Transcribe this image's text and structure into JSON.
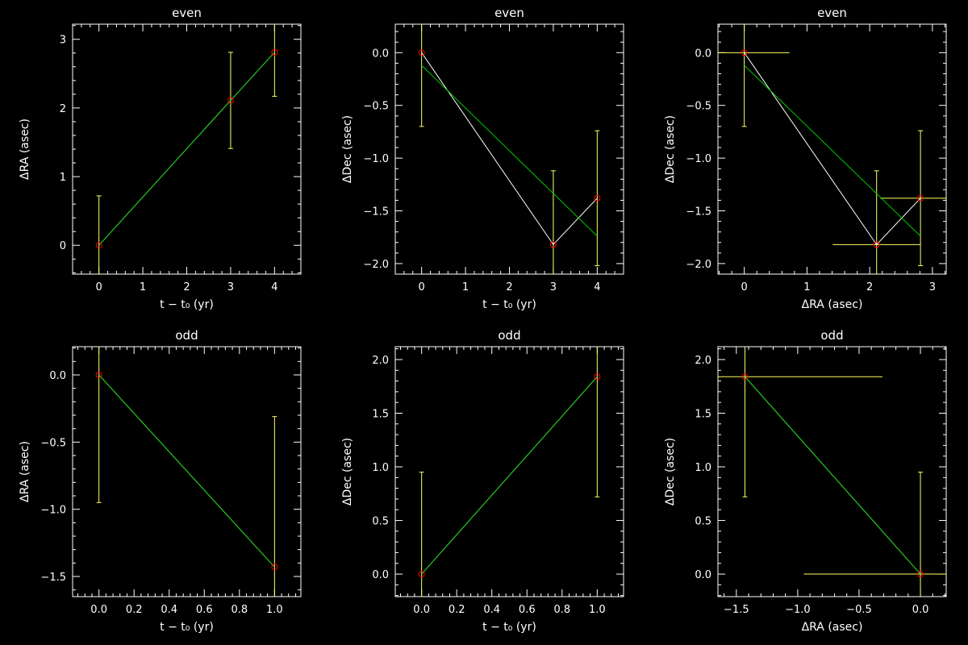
{
  "figure": {
    "colors": {
      "background": "#000000",
      "axes": "#ffffff",
      "fit_line": "#00c800",
      "connector_line": "#ffffff",
      "error_bars": "#ffff64",
      "markers": "#ff0000"
    }
  },
  "chart_data": [
    {
      "type": "scatter",
      "title": "even",
      "xlabel": "t − t₀ (yr)",
      "ylabel": "ΔRA (asec)",
      "xlim": [
        -0.6,
        4.6
      ],
      "ylim": [
        -0.42,
        3.22
      ],
      "xticks": [
        0,
        1,
        2,
        3,
        4
      ],
      "xtick_labels": [
        "0",
        "1",
        "2",
        "3",
        "4"
      ],
      "yticks": [
        0,
        1,
        2,
        3
      ],
      "ytick_labels": [
        "0",
        "1",
        "2",
        "3"
      ],
      "points": [
        {
          "x": 0,
          "y": 0,
          "yerr": 0.72
        },
        {
          "x": 3,
          "y": 2.11,
          "yerr": 0.7
        },
        {
          "x": 4,
          "y": 2.81,
          "yerr": 0.64
        }
      ],
      "connector": true,
      "fit": {
        "x": [
          0,
          4
        ],
        "y": [
          0.0,
          2.81
        ]
      },
      "grid": false
    },
    {
      "type": "scatter",
      "title": "even",
      "xlabel": "t − t₀ (yr)",
      "ylabel": "ΔDec (asec)",
      "xlim": [
        -0.6,
        4.6
      ],
      "ylim": [
        -2.1,
        0.27
      ],
      "xticks": [
        0,
        1,
        2,
        3,
        4
      ],
      "xtick_labels": [
        "0",
        "1",
        "2",
        "3",
        "4"
      ],
      "yticks": [
        0,
        -0.5,
        -1,
        -1.5,
        -2
      ],
      "ytick_labels": [
        "0.0",
        "−0.5",
        "−1.0",
        "−1.5",
        "−2.0"
      ],
      "points": [
        {
          "x": 0,
          "y": 0,
          "yerr": 0.7
        },
        {
          "x": 3,
          "y": -1.82,
          "yerr": 0.7
        },
        {
          "x": 4,
          "y": -1.38,
          "yerr": 0.64
        }
      ],
      "connector": true,
      "fit": {
        "x": [
          0,
          4
        ],
        "y": [
          -0.12,
          -1.74
        ]
      },
      "grid": false
    },
    {
      "type": "scatter",
      "title": "even",
      "xlabel": "ΔRA (asec)",
      "ylabel": "ΔDec (asec)",
      "xlim": [
        -0.42,
        3.22
      ],
      "ylim": [
        -2.1,
        0.27
      ],
      "xticks": [
        0,
        1,
        2,
        3
      ],
      "xtick_labels": [
        "0",
        "1",
        "2",
        "3"
      ],
      "yticks": [
        0,
        -0.5,
        -1,
        -1.5,
        -2
      ],
      "ytick_labels": [
        "0.0",
        "−0.5",
        "−1.0",
        "−1.5",
        "−2.0"
      ],
      "points": [
        {
          "x": 0,
          "y": 0,
          "xerr": 0.72,
          "yerr": 0.7
        },
        {
          "x": 2.11,
          "y": -1.82,
          "xerr": 0.7,
          "yerr": 0.7
        },
        {
          "x": 2.81,
          "y": -1.38,
          "xerr": 0.64,
          "yerr": 0.64
        }
      ],
      "connector": true,
      "fit": {
        "x": [
          0,
          2.81
        ],
        "y": [
          -0.12,
          -1.74
        ]
      },
      "grid": false
    },
    {
      "type": "scatter",
      "title": "odd",
      "xlabel": "t − t₀ (yr)",
      "ylabel": "ΔRA (asec)",
      "xlim": [
        -0.15,
        1.15
      ],
      "ylim": [
        -1.65,
        0.21
      ],
      "xticks": [
        0,
        0.2,
        0.4,
        0.6,
        0.8,
        1.0
      ],
      "xtick_labels": [
        "0.0",
        "0.2",
        "0.4",
        "0.6",
        "0.8",
        "1.0"
      ],
      "yticks": [
        0,
        -0.5,
        -1,
        -1.5
      ],
      "ytick_labels": [
        "0.0",
        "−0.5",
        "−1.0",
        "−1.5"
      ],
      "points": [
        {
          "x": 0,
          "y": 0,
          "yerr": 0.95
        },
        {
          "x": 1,
          "y": -1.43,
          "yerr": 1.12
        }
      ],
      "connector": true,
      "fit": {
        "x": [
          0,
          1
        ],
        "y": [
          0,
          -1.43
        ]
      },
      "grid": false
    },
    {
      "type": "scatter",
      "title": "odd",
      "xlabel": "t − t₀ (yr)",
      "ylabel": "ΔDec (asec)",
      "xlim": [
        -0.15,
        1.15
      ],
      "ylim": [
        -0.21,
        2.12
      ],
      "xticks": [
        0,
        0.2,
        0.4,
        0.6,
        0.8,
        1.0
      ],
      "xtick_labels": [
        "0.0",
        "0.2",
        "0.4",
        "0.6",
        "0.8",
        "1.0"
      ],
      "yticks": [
        0,
        0.5,
        1,
        1.5,
        2
      ],
      "ytick_labels": [
        "0.0",
        "0.5",
        "1.0",
        "1.5",
        "2.0"
      ],
      "points": [
        {
          "x": 0,
          "y": 0,
          "yerr": 0.95
        },
        {
          "x": 1,
          "y": 1.84,
          "yerr": 1.12
        }
      ],
      "connector": true,
      "fit": {
        "x": [
          0,
          1
        ],
        "y": [
          0,
          1.84
        ]
      },
      "grid": false
    },
    {
      "type": "scatter",
      "title": "odd",
      "xlabel": "ΔRA (asec)",
      "ylabel": "ΔDec (asec)",
      "xlim": [
        -1.65,
        0.21
      ],
      "ylim": [
        -0.21,
        2.12
      ],
      "xticks": [
        -1.5,
        -1,
        -0.5,
        0
      ],
      "xtick_labels": [
        "−1.5",
        "−1.0",
        "−0.5",
        "0.0"
      ],
      "yticks": [
        0,
        0.5,
        1,
        1.5,
        2
      ],
      "ytick_labels": [
        "0.0",
        "0.5",
        "1.0",
        "1.5",
        "2.0"
      ],
      "points": [
        {
          "x": 0,
          "y": 0,
          "xerr": 0.95,
          "yerr": 0.95
        },
        {
          "x": -1.43,
          "y": 1.84,
          "xerr": 1.12,
          "yerr": 1.12
        }
      ],
      "connector": true,
      "fit": {
        "x": [
          0,
          -1.43
        ],
        "y": [
          0,
          1.84
        ]
      },
      "grid": false
    }
  ]
}
